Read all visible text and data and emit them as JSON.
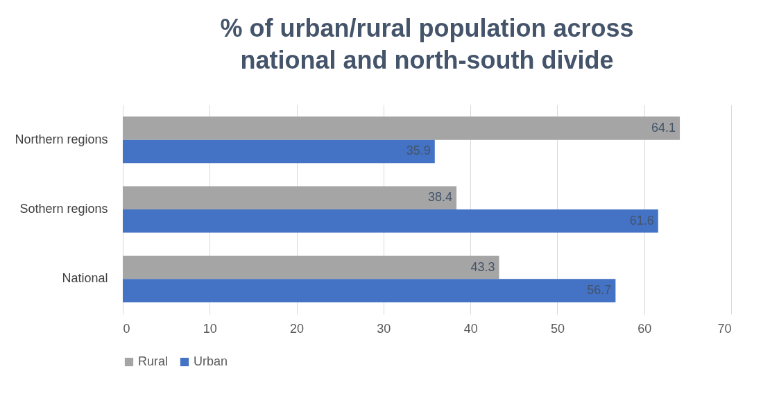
{
  "chart_data": {
    "type": "bar",
    "orientation": "horizontal",
    "title": "% of urban/rural population across national and north-south divide",
    "categories": [
      "Northern regions",
      "Sothern regions",
      "National"
    ],
    "series": [
      {
        "name": "Rural",
        "color": "#a5a5a5",
        "values": [
          64.1,
          38.4,
          43.3
        ]
      },
      {
        "name": "Urban",
        "color": "#4472c4",
        "values": [
          35.9,
          61.6,
          56.7
        ]
      }
    ],
    "xlim": [
      0,
      70
    ],
    "xticks": [
      0,
      10,
      20,
      30,
      40,
      50,
      60,
      70
    ],
    "grid": "x",
    "legend": "bottom",
    "data_labels": true
  }
}
